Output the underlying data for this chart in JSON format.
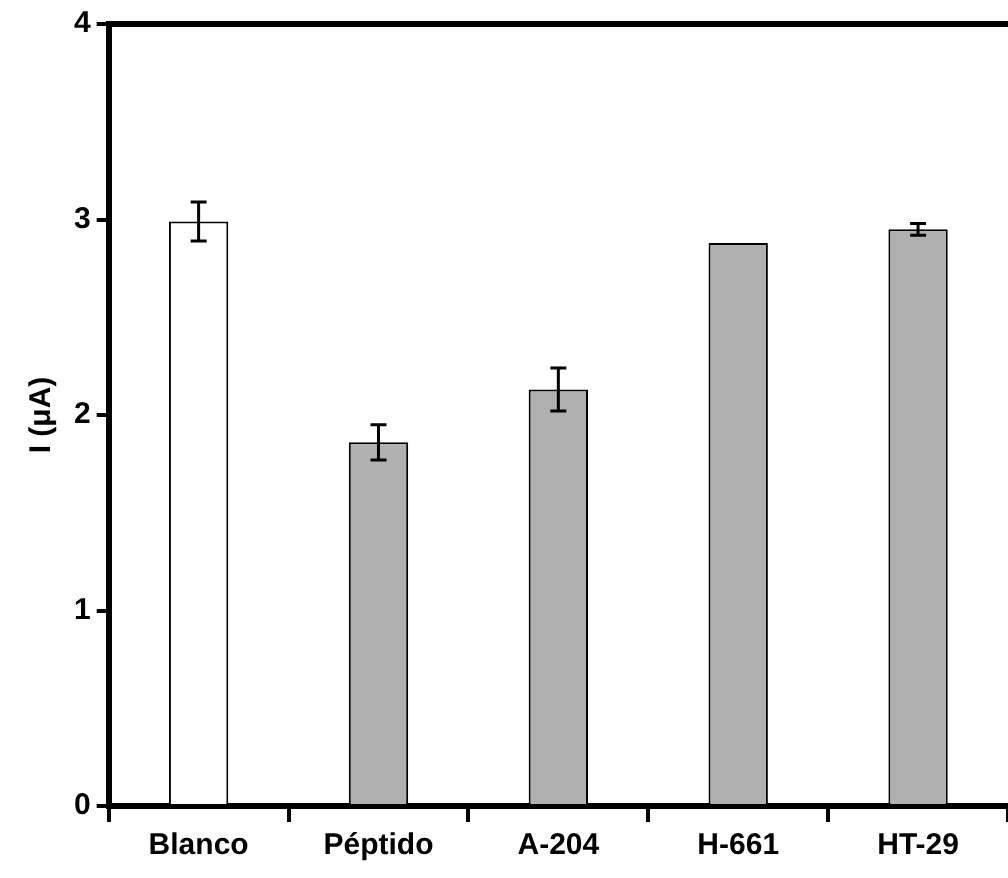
{
  "chart_data": {
    "type": "bar",
    "ylabel": "I (μA)",
    "categories": [
      "Blanco",
      "Péptido",
      "A-204",
      "H-661",
      "HT-29"
    ],
    "values": [
      2.99,
      1.86,
      2.13,
      2.88,
      2.95
    ],
    "colors": [
      "#ffffff",
      "#b0b0b0",
      "#b0b0b0",
      "#b0b0b0",
      "#b0b0b0"
    ],
    "errors": [
      0.1,
      0.09,
      0.11,
      null,
      0.03
    ],
    "ylim": [
      0,
      4
    ],
    "yticks": [
      0,
      1,
      2,
      3,
      4
    ],
    "grid": false,
    "legend": false
  }
}
